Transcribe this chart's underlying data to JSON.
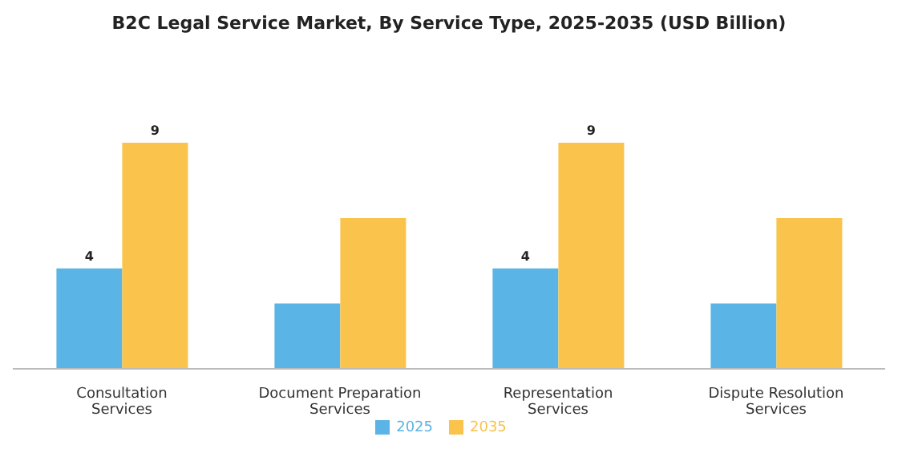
{
  "chart_data": {
    "type": "bar",
    "title": "B2C Legal Service Market, By Service Type, 2025-2035 (USD Billion)",
    "categories": [
      "Consultation Services",
      "Document Preparation Services",
      "Representation Services",
      "Dispute Resolution Services"
    ],
    "series": [
      {
        "name": "2025",
        "color": "#5ab4e5",
        "values": [
          4,
          2.6,
          4,
          2.6
        ],
        "value_labels": [
          "4",
          null,
          "4",
          null
        ]
      },
      {
        "name": "2035",
        "color": "#f9c34c",
        "values": [
          9,
          6,
          9,
          6
        ],
        "value_labels": [
          "9",
          null,
          "9",
          null
        ]
      }
    ],
    "legend": "bottom",
    "grid": false
  }
}
